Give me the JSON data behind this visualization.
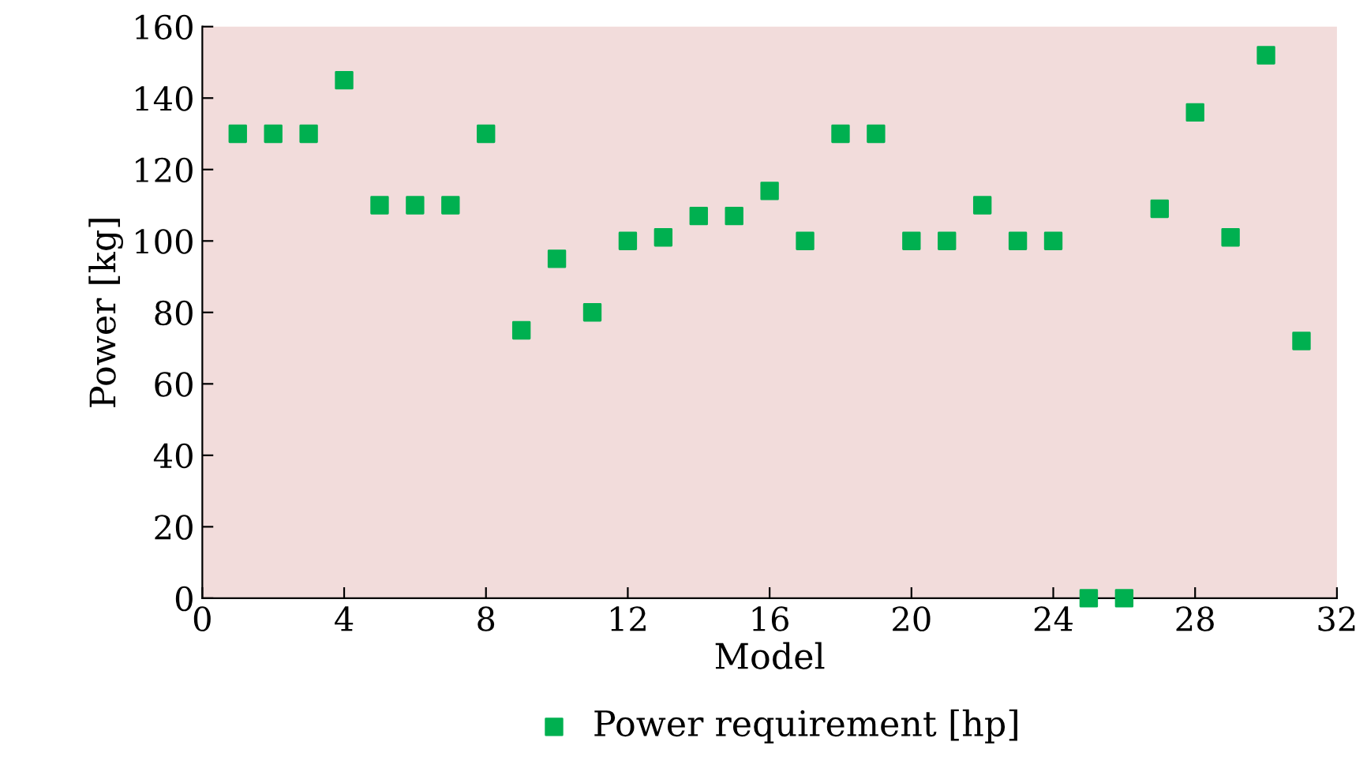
{
  "chart_data": {
    "type": "scatter",
    "xlabel": "Model",
    "ylabel": "Power [kg]",
    "x": [
      1,
      2,
      3,
      4,
      5,
      6,
      7,
      8,
      9,
      10,
      11,
      12,
      13,
      14,
      15,
      16,
      17,
      18,
      19,
      20,
      21,
      22,
      23,
      24,
      25,
      26,
      27,
      28,
      29,
      30,
      31
    ],
    "series": [
      {
        "name": "Power requirement [hp]",
        "color": "#00b050",
        "values": [
          130,
          130,
          130,
          145,
          110,
          110,
          110,
          130,
          75,
          95,
          80,
          100,
          101,
          107,
          107,
          114,
          100,
          130,
          130,
          100,
          100,
          110,
          100,
          100,
          0,
          0,
          109,
          136,
          101,
          152,
          72
        ]
      }
    ],
    "xlim": [
      0,
      32
    ],
    "xticks": [
      0,
      4,
      8,
      12,
      16,
      20,
      24,
      28,
      32
    ],
    "ylim": [
      0,
      160
    ],
    "yticks": [
      0,
      20,
      40,
      60,
      80,
      100,
      120,
      140,
      160
    ],
    "grid": false,
    "legend": "bottom",
    "marker": "square"
  }
}
